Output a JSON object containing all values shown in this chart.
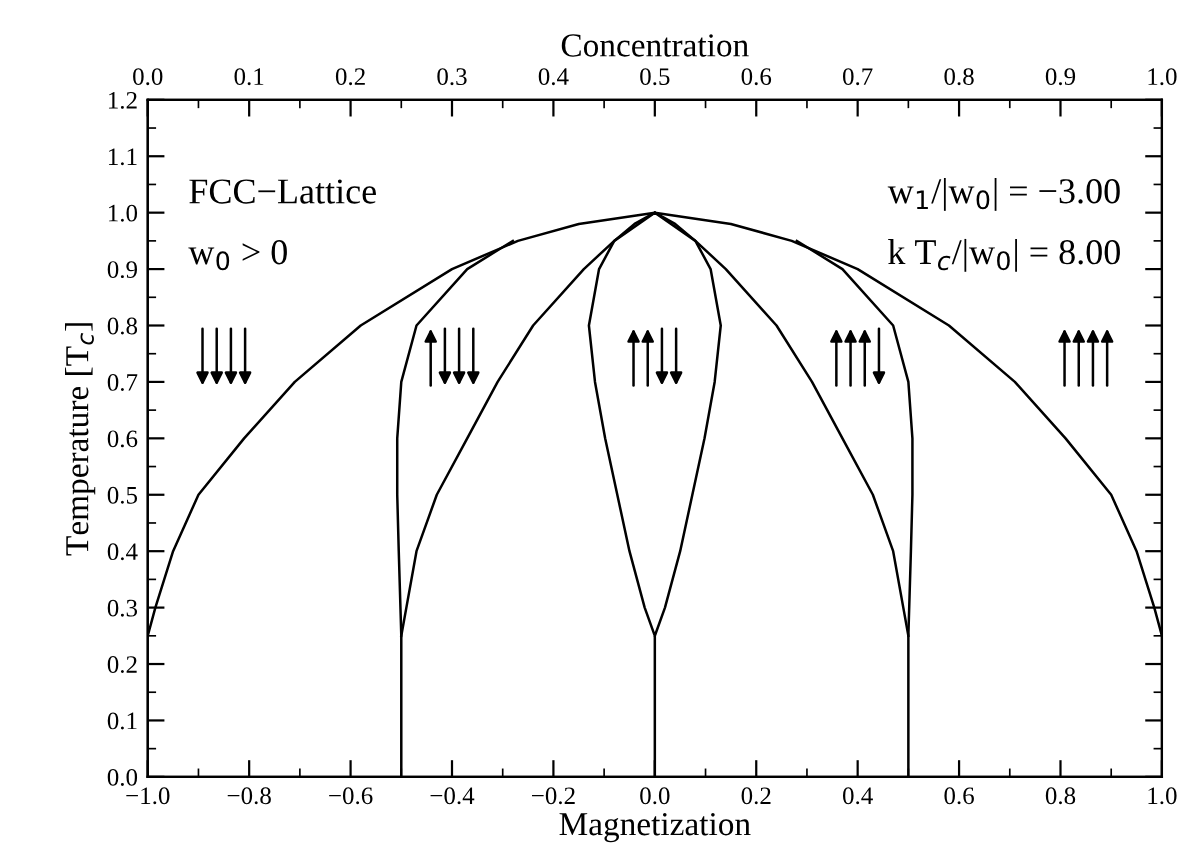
{
  "chart_data": {
    "type": "line",
    "xlabel": "Magnetization",
    "ylabel": "Temperature [T$_{c}$]",
    "x2label": "Concentration",
    "xlim": [
      -1.0,
      1.0
    ],
    "xticks": [
      {
        "value": -1.0,
        "label": "−1.0"
      },
      {
        "value": -0.8,
        "label": "−0.8"
      },
      {
        "value": -0.6,
        "label": "−0.6"
      },
      {
        "value": -0.4,
        "label": "−0.4"
      },
      {
        "value": -0.2,
        "label": "−0.2"
      },
      {
        "value": 0.0,
        "label": "0.0"
      },
      {
        "value": 0.2,
        "label": "0.2"
      },
      {
        "value": 0.4,
        "label": "0.4"
      },
      {
        "value": 0.6,
        "label": "0.6"
      },
      {
        "value": 0.8,
        "label": "0.8"
      },
      {
        "value": 1.0,
        "label": "1.0"
      }
    ],
    "x2lim": [
      0.0,
      1.0
    ],
    "x2ticks": [
      {
        "value": 0.0,
        "label": "0.0"
      },
      {
        "value": 0.1,
        "label": "0.1"
      },
      {
        "value": 0.2,
        "label": "0.2"
      },
      {
        "value": 0.3,
        "label": "0.3"
      },
      {
        "value": 0.4,
        "label": "0.4"
      },
      {
        "value": 0.5,
        "label": "0.5"
      },
      {
        "value": 0.6,
        "label": "0.6"
      },
      {
        "value": 0.7,
        "label": "0.7"
      },
      {
        "value": 0.8,
        "label": "0.8"
      },
      {
        "value": 0.9,
        "label": "0.9"
      },
      {
        "value": 1.0,
        "label": "1.0"
      }
    ],
    "ylim": [
      0.0,
      1.2
    ],
    "yticks": [
      {
        "value": 0.0,
        "label": "0.0"
      },
      {
        "value": 0.1,
        "label": "0.1"
      },
      {
        "value": 0.2,
        "label": "0.2"
      },
      {
        "value": 0.3,
        "label": "0.3"
      },
      {
        "value": 0.4,
        "label": "0.4"
      },
      {
        "value": 0.5,
        "label": "0.5"
      },
      {
        "value": 0.6,
        "label": "0.6"
      },
      {
        "value": 0.7,
        "label": "0.7"
      },
      {
        "value": 0.8,
        "label": "0.8"
      },
      {
        "value": 0.9,
        "label": "0.9"
      },
      {
        "value": 1.0,
        "label": "1.0"
      },
      {
        "value": 1.1,
        "label": "1.1"
      },
      {
        "value": 1.2,
        "label": "1.2"
      }
    ],
    "grid": false,
    "legend": false,
    "marker": "none",
    "line_style": "solid",
    "annotations": [
      "FCC−Lattice",
      "w$_{0}$ > 0",
      "w$_{1}$/|w$_{0}$| = −3.00",
      "k T$_{c}$/|w$_{0}$| = 8.00"
    ],
    "series": [
      {
        "color": "#000000",
        "x": [
          -1.0,
          -0.985,
          -0.95,
          -0.9,
          -0.81,
          -0.71,
          -0.58,
          -0.4,
          -0.27,
          -0.15,
          0.0,
          0.15,
          0.27,
          0.4,
          0.58,
          0.71,
          0.81,
          0.9,
          0.95,
          0.985,
          1.0
        ],
        "values": [
          0.25,
          0.3,
          0.4,
          0.5,
          0.6,
          0.7,
          0.8,
          0.9,
          0.95,
          0.98,
          1.0,
          0.98,
          0.95,
          0.9,
          0.8,
          0.7,
          0.6,
          0.5,
          0.4,
          0.3,
          0.25
        ]
      },
      {
        "color": "#000000",
        "x": [
          -0.5,
          -0.5,
          -0.505,
          -0.508,
          -0.508,
          -0.5,
          -0.47,
          -0.37,
          -0.28
        ],
        "values": [
          0.0,
          0.25,
          0.4,
          0.5,
          0.6,
          0.7,
          0.8,
          0.9,
          0.95
        ]
      },
      {
        "color": "#000000",
        "x": [
          -0.5,
          -0.49,
          -0.47,
          -0.43,
          -0.37,
          -0.31,
          -0.24,
          -0.14,
          -0.08,
          0.0
        ],
        "values": [
          0.25,
          0.3,
          0.4,
          0.5,
          0.6,
          0.7,
          0.8,
          0.9,
          0.95,
          1.0
        ]
      },
      {
        "color": "#000000",
        "x": [
          0.0,
          0.0,
          -0.02,
          -0.05,
          -0.098,
          -0.118,
          -0.13,
          -0.11,
          -0.08,
          -0.04,
          0.0,
          0.04,
          0.08,
          0.11,
          0.13,
          0.118,
          0.098,
          0.05,
          0.02,
          0.0
        ],
        "values": [
          0.0,
          0.25,
          0.3,
          0.4,
          0.6,
          0.7,
          0.8,
          0.9,
          0.95,
          0.98,
          1.0,
          0.98,
          0.95,
          0.9,
          0.8,
          0.7,
          0.6,
          0.4,
          0.3,
          0.25
        ]
      },
      {
        "color": "#000000",
        "x": [
          0.5,
          0.49,
          0.47,
          0.43,
          0.37,
          0.31,
          0.24,
          0.14,
          0.08,
          0.0
        ],
        "values": [
          0.25,
          0.3,
          0.4,
          0.5,
          0.6,
          0.7,
          0.8,
          0.9,
          0.95,
          1.0
        ]
      },
      {
        "color": "#000000",
        "x": [
          0.5,
          0.5,
          0.505,
          0.508,
          0.508,
          0.5,
          0.47,
          0.37,
          0.28
        ],
        "values": [
          0.0,
          0.25,
          0.4,
          0.5,
          0.6,
          0.7,
          0.8,
          0.9,
          0.95
        ]
      }
    ]
  }
}
